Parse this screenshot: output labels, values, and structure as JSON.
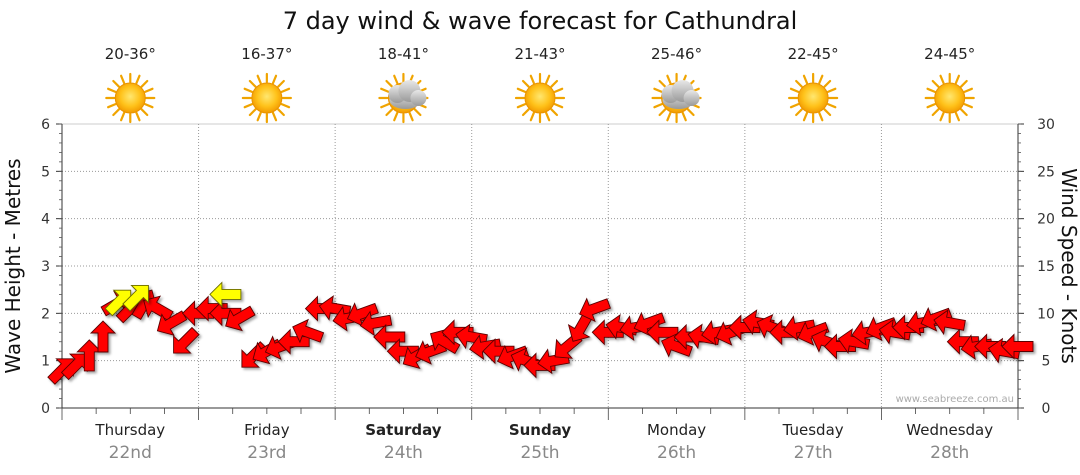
{
  "chart_data": {
    "type": "line",
    "title": "7 day wind & wave forecast for Cathundral",
    "y_left_label": "Wave Height - Metres",
    "y_right_label": "Wind Speed - Knots",
    "y_left_range": [
      0,
      6
    ],
    "y_left_ticks": [
      "0",
      "1",
      "2",
      "3",
      "4",
      "5",
      "6"
    ],
    "y_right_range": [
      0,
      30
    ],
    "y_right_ticks": [
      "0",
      "5",
      "10",
      "15",
      "20",
      "25",
      "30"
    ],
    "grid": true,
    "days": [
      {
        "name": "Thursday",
        "date": "22nd",
        "temp": "20-36°",
        "weather": "sunny",
        "bold": false
      },
      {
        "name": "Friday",
        "date": "23rd",
        "temp": "16-37°",
        "weather": "sunny",
        "bold": false
      },
      {
        "name": "Saturday",
        "date": "24th",
        "temp": "18-41°",
        "weather": "partly-cloudy",
        "bold": true
      },
      {
        "name": "Sunday",
        "date": "25th",
        "temp": "21-43°",
        "weather": "sunny",
        "bold": true
      },
      {
        "name": "Monday",
        "date": "26th",
        "temp": "25-46°",
        "weather": "partly-cloudy",
        "bold": false
      },
      {
        "name": "Tuesday",
        "date": "27th",
        "temp": "22-45°",
        "weather": "sunny",
        "bold": false
      },
      {
        "name": "Wednesday",
        "date": "28th",
        "temp": "24-45°",
        "weather": "sunny",
        "bold": false
      }
    ],
    "wind_series": {
      "name": "Wind",
      "color": "#ff0000",
      "x_days": [
        0.0,
        0.1,
        0.2,
        0.3,
        0.4,
        0.5,
        0.6,
        0.7,
        0.8,
        0.9,
        1.0,
        1.1,
        1.2,
        1.3,
        1.4,
        1.5,
        1.6,
        1.7,
        1.8,
        1.9,
        2.0,
        2.1,
        2.2,
        2.3,
        2.4,
        2.5,
        2.6,
        2.7,
        2.8,
        2.9,
        3.0,
        3.1,
        3.2,
        3.3,
        3.4,
        3.5,
        3.6,
        3.7,
        3.8,
        3.9,
        4.0,
        4.1,
        4.2,
        4.3,
        4.4,
        4.5,
        4.6,
        4.7,
        4.8,
        4.9,
        5.0,
        5.1,
        5.2,
        5.3,
        5.4,
        5.5,
        5.6,
        5.7,
        5.8,
        5.9,
        6.0,
        6.1,
        6.2,
        6.3,
        6.4,
        6.5,
        6.6,
        6.7,
        6.8,
        6.9,
        7.0
      ],
      "knots": [
        4.0,
        4.5,
        5.5,
        7.5,
        11.0,
        10.5,
        11.0,
        10.5,
        9.0,
        7.0,
        10.0,
        10.5,
        10.0,
        9.5,
        5.5,
        6.0,
        6.5,
        7.0,
        8.0,
        10.5,
        10.5,
        9.5,
        10.0,
        9.0,
        7.5,
        6.0,
        5.5,
        6.0,
        7.0,
        8.0,
        7.5,
        6.5,
        6.0,
        5.5,
        5.0,
        4.5,
        5.0,
        6.5,
        8.5,
        10.5,
        8.0,
        8.5,
        8.5,
        9.0,
        8.0,
        6.5,
        7.5,
        7.5,
        8.0,
        8.0,
        8.5,
        9.0,
        8.5,
        8.0,
        8.5,
        8.0,
        7.0,
        6.5,
        7.0,
        8.0,
        8.5,
        8.0,
        8.5,
        9.0,
        9.5,
        9.0,
        7.0,
        6.5,
        6.5,
        6.0,
        6.5
      ],
      "arrow_angle_deg": [
        45,
        45,
        90,
        90,
        30,
        45,
        60,
        150,
        210,
        225,
        180,
        180,
        180,
        210,
        225,
        210,
        200,
        180,
        160,
        180,
        170,
        190,
        200,
        190,
        180,
        180,
        210,
        200,
        150,
        180,
        170,
        190,
        180,
        200,
        160,
        180,
        190,
        220,
        240,
        200,
        180,
        170,
        190,
        200,
        180,
        160,
        180,
        170,
        190,
        200,
        180,
        170,
        160,
        180,
        190,
        200,
        160,
        180,
        170,
        190,
        200,
        170,
        180,
        190,
        200,
        170,
        180,
        190,
        180,
        170,
        180
      ]
    },
    "wave_series": {
      "name": "Wave",
      "color": "#ffff00",
      "x_days": [
        0.42,
        0.55,
        1.2
      ],
      "metres": [
        2.25,
        2.35,
        2.4
      ],
      "arrow_angle_deg": [
        45,
        45,
        180
      ]
    }
  },
  "credit": "www.seabreeze.com.au"
}
